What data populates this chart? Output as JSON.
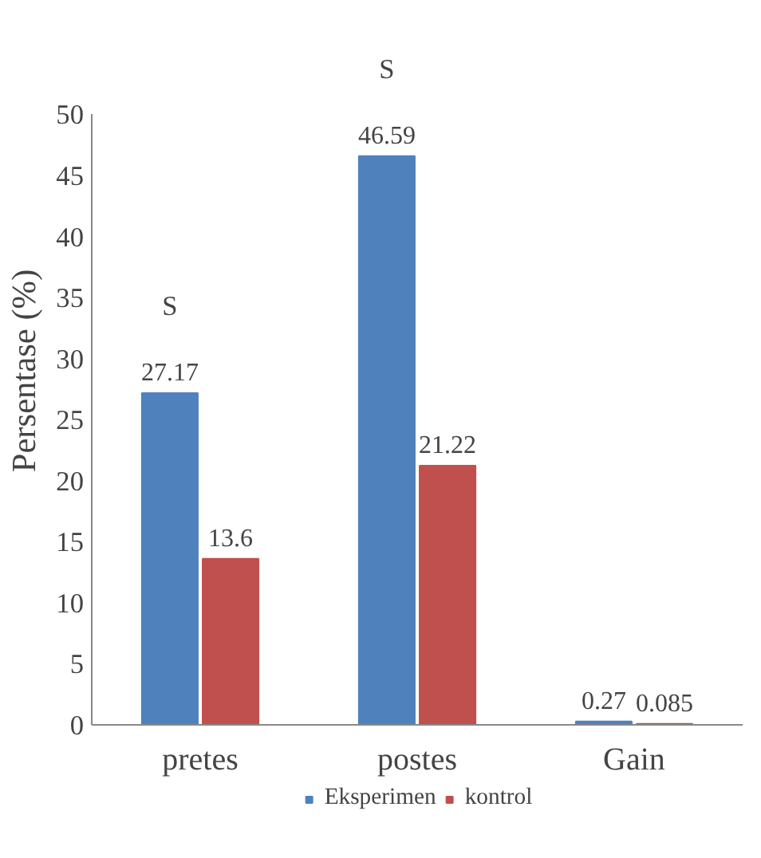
{
  "chart_data": {
    "type": "bar",
    "ylabel": "Persentase (%)",
    "categories": [
      "pretes",
      "postes",
      "Gain"
    ],
    "series": [
      {
        "name": "Eksperimen",
        "color": "#4f81bd",
        "values": [
          27.17,
          46.59,
          0.27
        ]
      },
      {
        "name": "kontrol",
        "color": "#c0504d",
        "values": [
          13.6,
          21.22,
          0.085
        ]
      }
    ],
    "ylim": [
      0,
      50
    ],
    "yticks": [
      0,
      5,
      10,
      15,
      20,
      25,
      30,
      35,
      40,
      45,
      50
    ],
    "grid": false,
    "legend": "bottom",
    "data_labels": true,
    "annotations": [
      "S",
      "S"
    ]
  }
}
